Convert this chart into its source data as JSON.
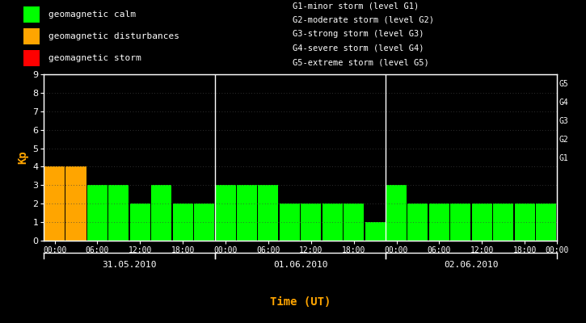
{
  "background_color": "#000000",
  "plot_bg_color": "#000000",
  "ylabel": "Kp",
  "ylabel_color": "#ffa500",
  "xlabel": "Time (UT)",
  "xlabel_color": "#ffa500",
  "ylim": [
    0,
    9
  ],
  "yticks": [
    0,
    1,
    2,
    3,
    4,
    5,
    6,
    7,
    8,
    9
  ],
  "bar_width": 0.95,
  "day_labels": [
    "31.05.2010",
    "01.06.2010",
    "02.06.2010"
  ],
  "kp_values": [
    4,
    4,
    3,
    3,
    2,
    3,
    2,
    2,
    3,
    3,
    3,
    2,
    2,
    2,
    2,
    1,
    3,
    2,
    2,
    2,
    2,
    2,
    2,
    2
  ],
  "bar_colors": [
    "#ffa500",
    "#ffa500",
    "#00ff00",
    "#00ff00",
    "#00ff00",
    "#00ff00",
    "#00ff00",
    "#00ff00",
    "#00ff00",
    "#00ff00",
    "#00ff00",
    "#00ff00",
    "#00ff00",
    "#00ff00",
    "#00ff00",
    "#00ff00",
    "#00ff00",
    "#00ff00",
    "#00ff00",
    "#00ff00",
    "#00ff00",
    "#00ff00",
    "#00ff00",
    "#00ff00"
  ],
  "legend_items": [
    {
      "label": "geomagnetic calm",
      "color": "#00ff00"
    },
    {
      "label": "geomagnetic disturbances",
      "color": "#ffa500"
    },
    {
      "label": "geomagnetic storm",
      "color": "#ff0000"
    }
  ],
  "right_labels": [
    {
      "y": 4.5,
      "text": "G1"
    },
    {
      "y": 5.5,
      "text": "G2"
    },
    {
      "y": 6.5,
      "text": "G3"
    },
    {
      "y": 7.5,
      "text": "G4"
    },
    {
      "y": 8.5,
      "text": "G5"
    }
  ],
  "storm_legend": [
    "G1-minor storm (level G1)",
    "G2-moderate storm (level G2)",
    "G3-strong storm (level G3)",
    "G4-severe storm (level G4)",
    "G5-extreme storm (level G5)"
  ],
  "tick_color": "#ffffff",
  "spine_color": "#ffffff",
  "text_color": "#ffffff",
  "dot_grid_color": "#404040",
  "separator_color": "#ffffff"
}
